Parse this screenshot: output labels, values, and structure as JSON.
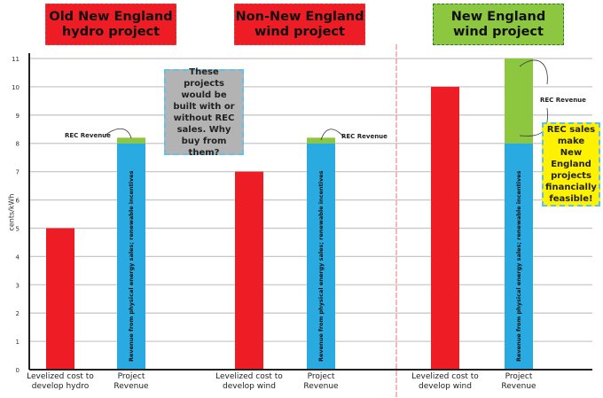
{
  "headers": [
    "Old New England hydro project",
    "Non-New England wind project",
    "New England wind project"
  ],
  "notes": {
    "gray": "These projects would be built with or without REC sales. Why buy from them?",
    "yellow": "REC sales make New England projects financially feasible!"
  },
  "rec_label": "REC Revenue",
  "bar_label": "Revenue from physical energy sales; renewable incentives",
  "colors": {
    "cost": "#ee1c24",
    "energy": "#29abe2",
    "rec": "#8dc63f",
    "gray_note": "#b3b3b3",
    "yellow_note": "#fff200"
  },
  "chart_data": {
    "type": "bar",
    "ylabel": "cents/kWh",
    "ylim": [
      0,
      11
    ],
    "yticks": [
      "0",
      "1",
      "2",
      "3",
      "4",
      "5",
      "6",
      "7",
      "8",
      "9",
      "10",
      "11"
    ],
    "grid": true,
    "categories": [
      "Levelized cost to develop hydro",
      "Project Revenue",
      "Levelized cost to develop wind",
      "Project Revenue",
      "Levelized cost to develop wind",
      "Project Revenue"
    ],
    "series": [
      {
        "name": "Levelized cost",
        "values": [
          5,
          null,
          7,
          null,
          10,
          null
        ]
      },
      {
        "name": "Revenue from physical energy sales; renewable incentives",
        "values": [
          null,
          8,
          null,
          8,
          null,
          8
        ]
      },
      {
        "name": "REC Revenue",
        "values": [
          null,
          0.2,
          null,
          0.2,
          null,
          3
        ]
      }
    ]
  }
}
